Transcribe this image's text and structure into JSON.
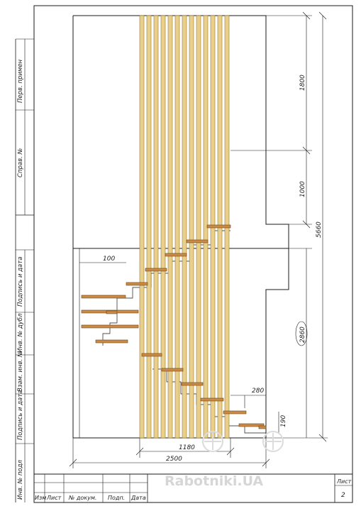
{
  "side_labels": {
    "perv_primen": "Перв. примен",
    "sprav_no": "Справ. №",
    "podpis_data_top": "Подпись и дата",
    "inv_dubl": "Инв. № дубл",
    "vzam_inv": "Взам. инв. №",
    "podpis_data_bottom": "Подпись и дата",
    "inv_podl": "Инв. № подл"
  },
  "dimensions": {
    "d1800": "1800",
    "d1000": "1000",
    "d5660": "5660",
    "d2860": "2860",
    "d100": "100",
    "d280": "280",
    "d190": "190",
    "d1180": "1180",
    "d2500": "2500"
  },
  "title_block": {
    "izm": "Изм",
    "list_col": "Лист",
    "doc_no": "№ докум.",
    "podp": "Подп.",
    "data": "Дата",
    "sheet_label": "Лист",
    "sheet_number": "2"
  },
  "watermark": "Rabotniki.UA",
  "colors": {
    "board_fill": "#e9cf8c",
    "board_stroke": "#9c7a2e",
    "tread_fill": "#c98b45",
    "tread_stroke": "#6e4516",
    "line": "#1a1a1a"
  }
}
